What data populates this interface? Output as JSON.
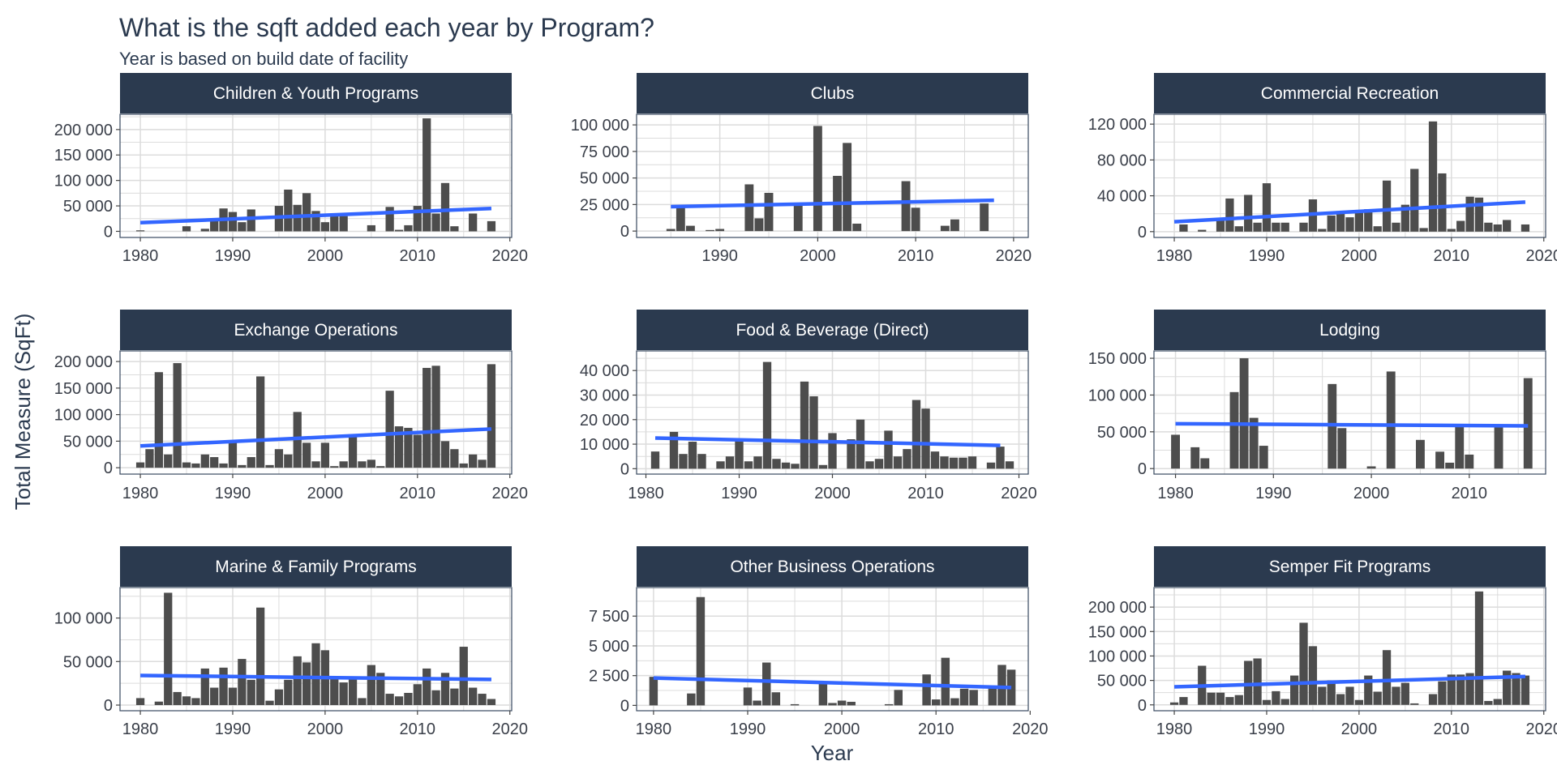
{
  "chart_data": {
    "type": "bar",
    "title": "What is the sqft added each year by Program?",
    "subtitle": "Year is based on build date of facility",
    "xlabel": "Year",
    "ylabel": "Total Measure (SqFt)",
    "colors": {
      "bar": "#4d4d4d",
      "trend": "#3366ff",
      "strip": "#2b3a4f",
      "grid": "#dcdcdc",
      "panel_border": "#3a4a60",
      "text": "#2b3a4f"
    },
    "panels": [
      {
        "name": "Children & Youth Programs",
        "xlim": [
          1977.8,
          2020.2
        ],
        "xticks": [
          1980,
          1990,
          2000,
          2010,
          2020
        ],
        "xtick_labels": [
          "1980",
          "1990",
          "2000",
          "2010",
          "2020"
        ],
        "ylim": [
          -12000,
          230000
        ],
        "yticks": [
          0,
          50000,
          100000,
          150000,
          200000
        ],
        "ytick_labels": [
          "0",
          "50 000",
          "100 000",
          "150 000",
          "200 000"
        ],
        "trend": [
          [
            1980,
            17000
          ],
          [
            2018,
            45000
          ]
        ],
        "years": [
          1980,
          1985,
          1987,
          1988,
          1989,
          1990,
          1991,
          1992,
          1995,
          1996,
          1997,
          1998,
          1999,
          2000,
          2001,
          2002,
          2005,
          2007,
          2008,
          2009,
          2010,
          2011,
          2012,
          2013,
          2014,
          2016,
          2018
        ],
        "values": [
          2000,
          10000,
          5000,
          25000,
          45000,
          38000,
          18000,
          43000,
          50000,
          82000,
          52000,
          75000,
          40000,
          18000,
          30000,
          30000,
          12000,
          48000,
          3000,
          12000,
          50000,
          222000,
          35000,
          95000,
          10000,
          35000,
          20000
        ]
      },
      {
        "name": "Clubs",
        "xlim": [
          1981.5,
          2021.5
        ],
        "xticks": [
          1990,
          2000,
          2010,
          2020
        ],
        "xtick_labels": [
          "1990",
          "2000",
          "2010",
          "2020"
        ],
        "ylim": [
          -6000,
          110000
        ],
        "yticks": [
          0,
          25000,
          50000,
          75000,
          100000
        ],
        "ytick_labels": [
          "0",
          "25 000",
          "50 000",
          "75 000",
          "100 000"
        ],
        "trend": [
          [
            1985,
            23000
          ],
          [
            2018,
            29000
          ]
        ],
        "years": [
          1985,
          1986,
          1987,
          1989,
          1990,
          1993,
          1994,
          1995,
          1998,
          2000,
          2002,
          2003,
          2004,
          2009,
          2010,
          2013,
          2014,
          2017
        ],
        "values": [
          2000,
          22000,
          5000,
          1000,
          2000,
          44000,
          12000,
          36000,
          25000,
          99000,
          52000,
          83000,
          7000,
          47000,
          22000,
          5000,
          11000,
          26000
        ]
      },
      {
        "name": "Commercial Recreation",
        "xlim": [
          1977.8,
          2020.2
        ],
        "xticks": [
          1980,
          1990,
          2000,
          2010,
          2020
        ],
        "xtick_labels": [
          "1980",
          "1990",
          "2000",
          "2010",
          "2020"
        ],
        "ylim": [
          -6500,
          131000
        ],
        "yticks": [
          0,
          40000,
          80000,
          120000
        ],
        "ytick_labels": [
          "0",
          "40 000",
          "80 000",
          "120 000"
        ],
        "trend": [
          [
            1980,
            11000
          ],
          [
            2018,
            33000
          ]
        ],
        "years": [
          1981,
          1983,
          1985,
          1986,
          1987,
          1988,
          1989,
          1990,
          1991,
          1992,
          1994,
          1995,
          1996,
          1997,
          1998,
          1999,
          2000,
          2001,
          2002,
          2003,
          2004,
          2005,
          2006,
          2007,
          2008,
          2009,
          2010,
          2011,
          2012,
          2013,
          2014,
          2015,
          2016,
          2018
        ],
        "values": [
          8000,
          2000,
          15000,
          37000,
          6000,
          41000,
          10000,
          54000,
          10000,
          10000,
          10000,
          36000,
          3000,
          18000,
          23000,
          16000,
          24000,
          25000,
          6000,
          57000,
          10000,
          30000,
          70000,
          4000,
          123000,
          65000,
          3000,
          12000,
          39000,
          38000,
          10000,
          8000,
          13000,
          8000
        ]
      },
      {
        "name": "Exchange Operations",
        "xlim": [
          1977.8,
          2020.2
        ],
        "xticks": [
          1980,
          1990,
          2000,
          2010,
          2020
        ],
        "xtick_labels": [
          "1980",
          "1990",
          "2000",
          "2010",
          "2020"
        ],
        "ylim": [
          -12000,
          220000
        ],
        "yticks": [
          0,
          50000,
          100000,
          150000,
          200000
        ],
        "ytick_labels": [
          "0",
          "50 000",
          "100 000",
          "150 000",
          "200 000"
        ],
        "trend": [
          [
            1980,
            41000
          ],
          [
            2018,
            73000
          ]
        ],
        "years": [
          1980,
          1981,
          1982,
          1983,
          1984,
          1985,
          1986,
          1987,
          1988,
          1989,
          1990,
          1991,
          1992,
          1993,
          1994,
          1995,
          1996,
          1997,
          1998,
          1999,
          2000,
          2001,
          2002,
          2003,
          2004,
          2005,
          2006,
          2007,
          2008,
          2009,
          2010,
          2011,
          2012,
          2013,
          2014,
          2015,
          2016,
          2017,
          2018
        ],
        "values": [
          10000,
          35000,
          180000,
          25000,
          197000,
          10000,
          8000,
          25000,
          20000,
          8000,
          50000,
          5000,
          20000,
          172000,
          5000,
          35000,
          25000,
          105000,
          47000,
          12000,
          47000,
          3000,
          12000,
          63000,
          12000,
          15000,
          3000,
          145000,
          78000,
          75000,
          62000,
          188000,
          192000,
          50000,
          35000,
          8000,
          25000,
          15000,
          195000
        ]
      },
      {
        "name": "Food & Beverage (Direct)",
        "xlim": [
          1979.0,
          2021.0
        ],
        "xticks": [
          1980,
          1990,
          2000,
          2010,
          2020
        ],
        "xtick_labels": [
          "1980",
          "1990",
          "2000",
          "2010",
          "2020"
        ],
        "ylim": [
          -2200,
          48000
        ],
        "yticks": [
          0,
          10000,
          20000,
          30000,
          40000
        ],
        "ytick_labels": [
          "0",
          "10 000",
          "20 000",
          "30 000",
          "40 000"
        ],
        "trend": [
          [
            1981,
            12500
          ],
          [
            2018,
            9500
          ]
        ],
        "years": [
          1981,
          1983,
          1984,
          1985,
          1986,
          1988,
          1989,
          1990,
          1991,
          1992,
          1993,
          1994,
          1995,
          1996,
          1997,
          1998,
          1999,
          2000,
          2002,
          2003,
          2004,
          2005,
          2006,
          2007,
          2008,
          2009,
          2010,
          2011,
          2012,
          2013,
          2014,
          2015,
          2017,
          2018,
          2019
        ],
        "values": [
          7000,
          15000,
          6000,
          11000,
          6000,
          3000,
          5000,
          12000,
          3000,
          5000,
          43500,
          4000,
          2500,
          2000,
          35500,
          29500,
          1500,
          14500,
          12000,
          20000,
          3000,
          4000,
          15500,
          5000,
          8000,
          28000,
          24500,
          7000,
          5000,
          4500,
          4500,
          5000,
          2500,
          9000,
          3000
        ]
      },
      {
        "name": "Lodging",
        "xlim": [
          1977.8,
          2017.8
        ],
        "xticks": [
          1980,
          1990,
          2000,
          2010
        ],
        "xtick_labels": [
          "1980",
          "1990",
          "2000",
          "2010"
        ],
        "ylim": [
          -7500,
          160000
        ],
        "yticks": [
          0,
          50000,
          100000,
          150000
        ],
        "ytick_labels": [
          "0",
          "50 000",
          "100 000",
          "150 000"
        ],
        "trend": [
          [
            1980,
            61000
          ],
          [
            2016,
            58000
          ]
        ],
        "years": [
          1980,
          1982,
          1983,
          1986,
          1987,
          1988,
          1989,
          1996,
          1997,
          2000,
          2002,
          2005,
          2007,
          2008,
          2009,
          2010,
          2013,
          2016
        ],
        "values": [
          46000,
          29000,
          14000,
          104000,
          150000,
          69000,
          31000,
          115000,
          55000,
          3000,
          132000,
          39000,
          23000,
          8000,
          57000,
          19000,
          56000,
          123000
        ]
      },
      {
        "name": "Marine & Family Programs",
        "xlim": [
          1977.8,
          2020.2
        ],
        "xticks": [
          1980,
          1990,
          2000,
          2010,
          2020
        ],
        "xtick_labels": [
          "1980",
          "1990",
          "2000",
          "2010",
          "2020"
        ],
        "ylim": [
          -6500,
          135000
        ],
        "yticks": [
          0,
          50000,
          100000
        ],
        "ytick_labels": [
          "0",
          "50 000",
          "100 000"
        ],
        "trend": [
          [
            1980,
            34000
          ],
          [
            2018,
            29500
          ]
        ],
        "years": [
          1980,
          1982,
          1983,
          1984,
          1985,
          1986,
          1987,
          1988,
          1989,
          1990,
          1991,
          1992,
          1993,
          1994,
          1995,
          1996,
          1997,
          1998,
          1999,
          2000,
          2001,
          2002,
          2003,
          2004,
          2005,
          2006,
          2007,
          2008,
          2009,
          2010,
          2011,
          2012,
          2013,
          2014,
          2015,
          2016,
          2017,
          2018
        ],
        "values": [
          8000,
          4000,
          129000,
          15000,
          10000,
          8000,
          42000,
          20000,
          43000,
          20000,
          53000,
          29000,
          112000,
          5000,
          18000,
          29000,
          56000,
          49000,
          71000,
          63000,
          30000,
          26000,
          31000,
          8000,
          46000,
          37000,
          13000,
          10000,
          14000,
          24000,
          42000,
          17000,
          37000,
          19000,
          67000,
          20000,
          13000,
          7000
        ]
      },
      {
        "name": "Other Business Operations",
        "xlim": [
          1978.2,
          2019.8
        ],
        "xticks": [
          1980,
          1990,
          2000,
          2010,
          2020
        ],
        "xtick_labels": [
          "1980",
          "1990",
          "2000",
          "2010",
          "2020"
        ],
        "ylim": [
          -450,
          9900
        ],
        "yticks": [
          0,
          2500,
          5000,
          7500
        ],
        "ytick_labels": [
          "0",
          "2 500",
          "5 000",
          "7 500"
        ],
        "trend": [
          [
            1980,
            2300
          ],
          [
            2018,
            1500
          ]
        ],
        "years": [
          1980,
          1984,
          1985,
          1990,
          1991,
          1992,
          1993,
          1995,
          1998,
          1999,
          2000,
          2001,
          2005,
          2006,
          2009,
          2010,
          2011,
          2012,
          2013,
          2014,
          2016,
          2017,
          2018
        ],
        "values": [
          2400,
          1000,
          9100,
          1500,
          400,
          3600,
          1100,
          100,
          1800,
          200,
          400,
          300,
          100,
          1300,
          2600,
          500,
          4000,
          600,
          1400,
          1300,
          1500,
          3400,
          3000
        ]
      },
      {
        "name": "Semper Fit Programs",
        "xlim": [
          1977.8,
          2020.2
        ],
        "xticks": [
          1980,
          1990,
          2000,
          2010,
          2020
        ],
        "xtick_labels": [
          "1980",
          "1990",
          "2000",
          "2010",
          "2020"
        ],
        "ylim": [
          -12000,
          240000
        ],
        "yticks": [
          0,
          50000,
          100000,
          150000,
          200000
        ],
        "ytick_labels": [
          "0",
          "50 000",
          "100 000",
          "150 000",
          "200 000"
        ],
        "trend": [
          [
            1980,
            37000
          ],
          [
            2018,
            58000
          ]
        ],
        "years": [
          1980,
          1981,
          1983,
          1984,
          1985,
          1986,
          1987,
          1988,
          1989,
          1990,
          1991,
          1992,
          1993,
          1994,
          1995,
          1996,
          1997,
          1998,
          1999,
          2000,
          2001,
          2002,
          2003,
          2004,
          2005,
          2006,
          2008,
          2009,
          2010,
          2011,
          2012,
          2013,
          2014,
          2015,
          2016,
          2017,
          2018
        ],
        "values": [
          5000,
          16000,
          80000,
          25000,
          25000,
          16000,
          20000,
          90000,
          95000,
          10000,
          28000,
          12000,
          60000,
          168000,
          120000,
          37000,
          50000,
          22000,
          37000,
          10000,
          60000,
          27000,
          112000,
          37000,
          45000,
          3000,
          22000,
          48000,
          62000,
          62000,
          65000,
          232000,
          8000,
          12000,
          70000,
          65000,
          60000
        ]
      }
    ]
  }
}
